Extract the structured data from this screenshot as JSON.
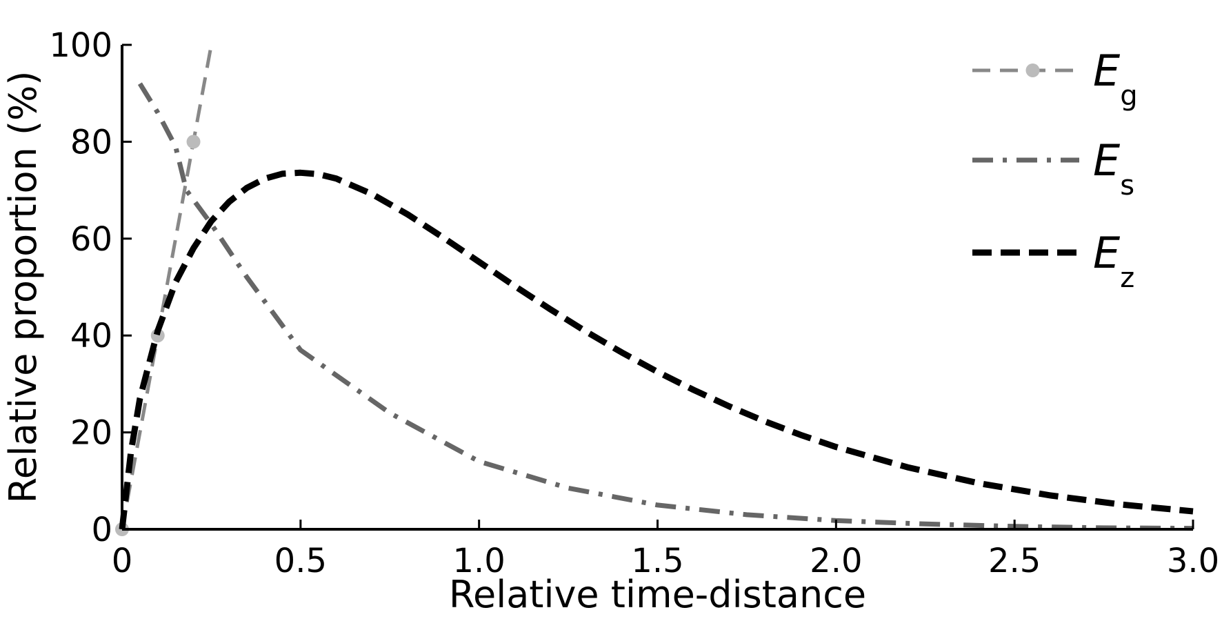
{
  "chart_data": {
    "type": "line",
    "title": "",
    "xlabel": "Relative time-distance",
    "ylabel": "Relative proportion (%)",
    "xlim": [
      0,
      3.0
    ],
    "ylim": [
      0,
      100
    ],
    "xticks": [
      0,
      0.5,
      1.0,
      1.5,
      2.0,
      2.5,
      3.0
    ],
    "xtick_labels": [
      "0",
      "0.5",
      "1.0",
      "1.5",
      "2.0",
      "2.5",
      "3.0"
    ],
    "yticks": [
      0,
      20,
      40,
      60,
      80,
      100
    ],
    "ytick_labels": [
      "0",
      "20",
      "40",
      "60",
      "80",
      "100"
    ],
    "grid": false,
    "legend_position": "top-right",
    "series": [
      {
        "name": "E",
        "name_subscript": "g",
        "style": "dashed-with-markers",
        "color": "#888888",
        "marker_color": "#bbbbbb",
        "x": [
          0,
          0.1,
          0.2,
          0.25
        ],
        "y": [
          0,
          40,
          80,
          100
        ],
        "markers_x": [
          0,
          0.1,
          0.2
        ],
        "markers_y": [
          0,
          40,
          80
        ]
      },
      {
        "name": "E",
        "name_subscript": "s",
        "style": "dash-dot",
        "color": "#666666",
        "x": [
          0.05,
          0.1,
          0.15,
          0.18,
          0.25,
          0.35,
          0.5,
          0.75,
          1.0,
          1.25,
          1.5,
          1.75,
          2.0,
          2.25,
          2.5,
          2.75,
          3.0
        ],
        "y": [
          92,
          86,
          79,
          70,
          63,
          52,
          37,
          24,
          14,
          8.5,
          5,
          3,
          1.8,
          1.1,
          0.6,
          0.3,
          0.2
        ]
      },
      {
        "name": "E",
        "name_subscript": "z",
        "style": "dashed-bold",
        "color": "#000000",
        "x": [
          0,
          0.025,
          0.05,
          0.075,
          0.1,
          0.15,
          0.2,
          0.25,
          0.3,
          0.35,
          0.4,
          0.45,
          0.5,
          0.55,
          0.6,
          0.7,
          0.8,
          0.9,
          1.0,
          1.1,
          1.2,
          1.3,
          1.4,
          1.5,
          1.6,
          1.7,
          1.8,
          1.9,
          2.0,
          2.2,
          2.4,
          2.6,
          2.8,
          3.0
        ],
        "y": [
          0,
          16,
          27,
          34,
          41,
          51,
          58,
          63.6,
          67.6,
          70.5,
          72.4,
          73.4,
          73.6,
          73.3,
          72.4,
          69.2,
          65,
          60.2,
          55.2,
          50.2,
          45.4,
          40.8,
          36.5,
          32.5,
          28.8,
          25.4,
          22.3,
          19.5,
          17,
          12.8,
          9.5,
          7,
          5.1,
          3.7
        ]
      }
    ]
  }
}
